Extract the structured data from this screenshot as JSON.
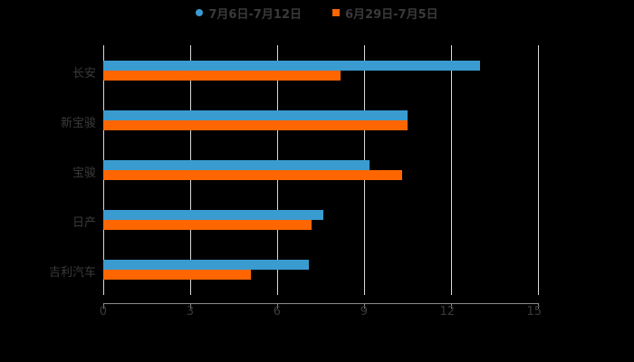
{
  "legend": [
    {
      "label": "7月6日-7月12日",
      "color": "#3A9BD0",
      "shape": "circle"
    },
    {
      "label": "6月29日-7月5日",
      "color": "#FF6600",
      "shape": "square"
    }
  ],
  "axis": {
    "ticks": [
      "0",
      "3",
      "6",
      "9",
      "12",
      "15"
    ]
  },
  "categories": [
    "长安",
    "新宝骏",
    "宝骏",
    "日产",
    "吉利汽车"
  ],
  "chart_data": {
    "type": "bar",
    "orientation": "horizontal",
    "title": "",
    "xlabel": "",
    "ylabel": "",
    "categories": [
      "长安",
      "新宝骏",
      "宝骏",
      "日产",
      "吉利汽车"
    ],
    "series": [
      {
        "name": "7月6日-7月12日",
        "color": "#3A9BD0",
        "values": [
          13.0,
          10.5,
          9.2,
          7.6,
          7.1
        ]
      },
      {
        "name": "6月29日-7月5日",
        "color": "#FF6600",
        "values": [
          8.2,
          10.5,
          10.3,
          7.2,
          5.1
        ]
      }
    ],
    "xlim": [
      0,
      15
    ],
    "xticks": [
      0,
      3,
      6,
      9,
      12,
      15
    ],
    "grid": "vertical",
    "legend_position": "top"
  }
}
